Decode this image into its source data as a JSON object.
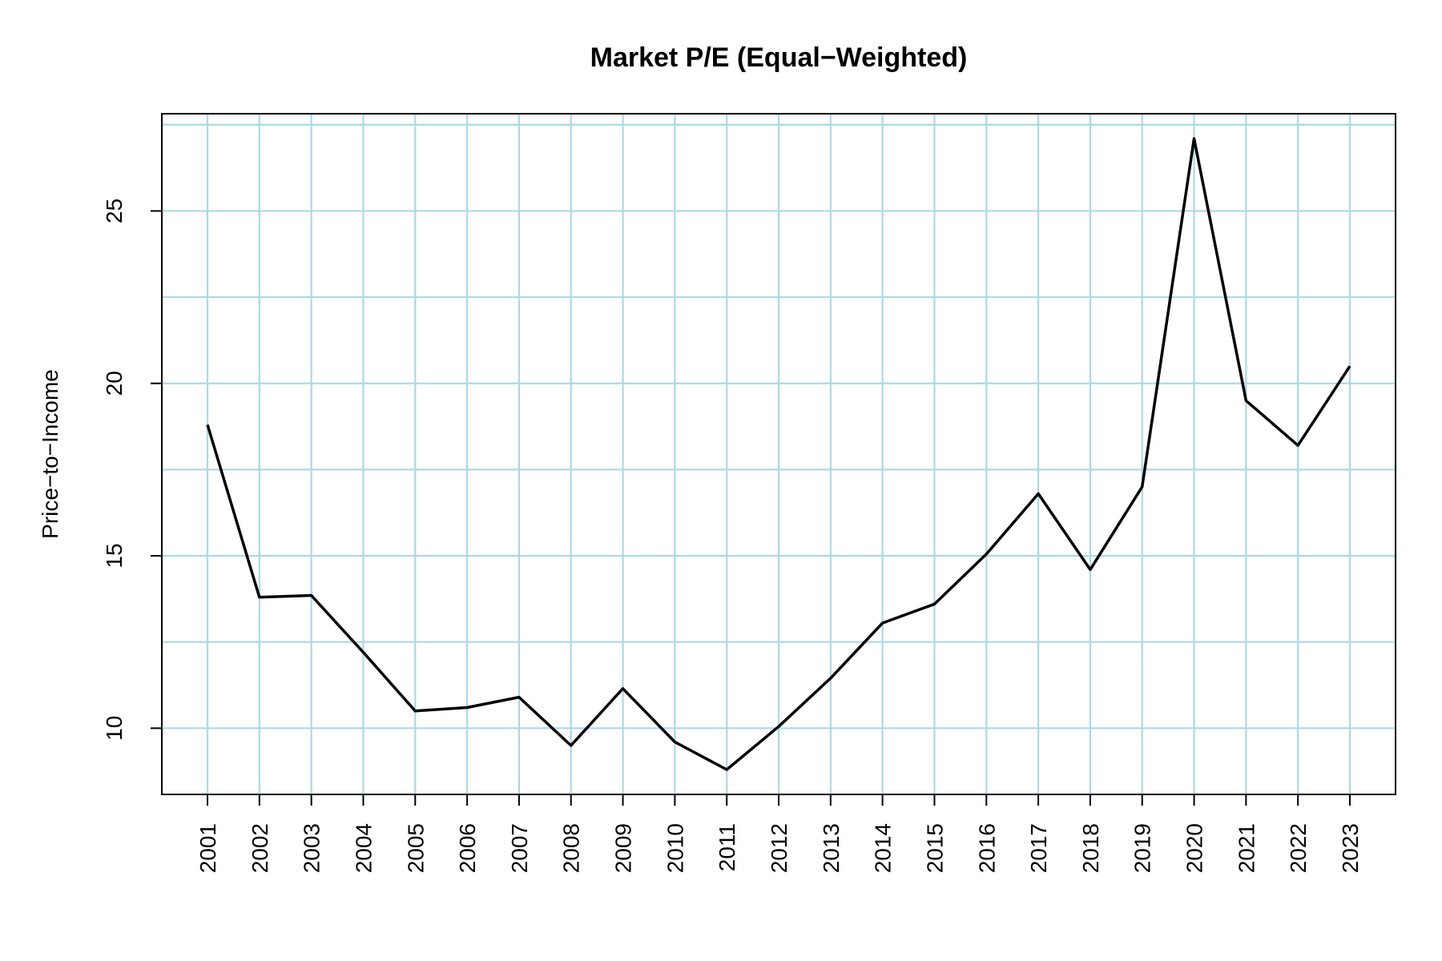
{
  "chart_data": {
    "type": "line",
    "title": "Market P/E (Equal−Weighted)",
    "xlabel": "",
    "ylabel": "Price−to−Income",
    "categories": [
      "2001",
      "2002",
      "2003",
      "2004",
      "2005",
      "2006",
      "2007",
      "2008",
      "2009",
      "2010",
      "2011",
      "2012",
      "2013",
      "2014",
      "2015",
      "2016",
      "2017",
      "2018",
      "2019",
      "2020",
      "2021",
      "2022",
      "2023"
    ],
    "values": [
      18.8,
      13.8,
      13.85,
      12.2,
      10.5,
      10.6,
      10.9,
      9.5,
      11.15,
      9.6,
      8.8,
      10.05,
      11.45,
      13.05,
      13.6,
      15.05,
      16.8,
      14.6,
      17.0,
      27.1,
      19.5,
      18.2,
      20.5
    ],
    "yticks": [
      10,
      15,
      20,
      25
    ],
    "ylim": [
      8.08,
      27.82
    ],
    "grid_y": [
      10,
      12.5,
      15,
      17.5,
      20,
      22.5,
      25,
      27.5
    ],
    "grid": true,
    "colors": {
      "line": "#000000",
      "grid": "#add8e6"
    }
  }
}
